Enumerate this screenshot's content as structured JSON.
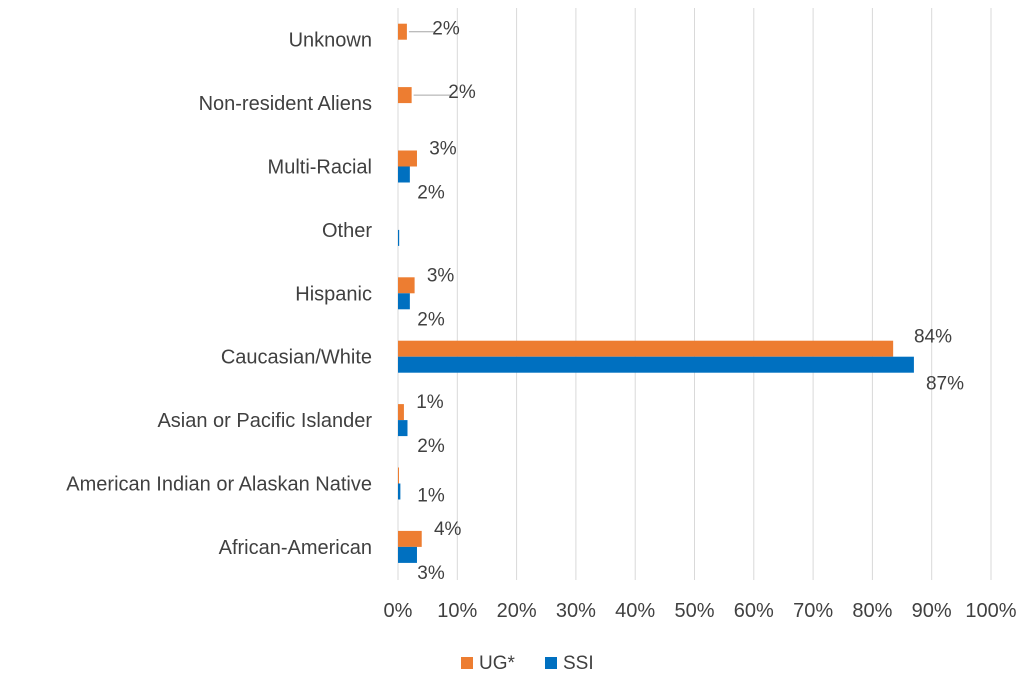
{
  "chart_data": {
    "type": "bar",
    "orientation": "horizontal",
    "categories": [
      "Unknown",
      "Non-resident Aliens",
      "Multi-Racial",
      "Other",
      "Hispanic",
      "Caucasian/White",
      "Asian or Pacific Islander",
      "American Indian or Alaskan Native",
      "African-American"
    ],
    "series": [
      {
        "name": "UG*",
        "color": "#ED7D31",
        "values": [
          1.5,
          2.3,
          3.2,
          0,
          2.8,
          83.5,
          1.0,
          0.1,
          4.0
        ],
        "labels": [
          "2%",
          "2%",
          "3%",
          "",
          "3%",
          "84%",
          "1%",
          "",
          "4%"
        ]
      },
      {
        "name": "SSI",
        "color": "#0070C0",
        "values": [
          0,
          0,
          2.0,
          0.2,
          2.0,
          87.0,
          1.6,
          0.4,
          3.2
        ],
        "labels": [
          "",
          "",
          "2%",
          "",
          "2%",
          "87%",
          "2%",
          "1%",
          "3%"
        ]
      }
    ],
    "xlim": [
      0,
      100
    ],
    "ticks": [
      "0%",
      "10%",
      "20%",
      "30%",
      "40%",
      "50%",
      "60%",
      "70%",
      "80%",
      "90%",
      "100%"
    ],
    "grid": true,
    "legend_position": "bottom"
  }
}
